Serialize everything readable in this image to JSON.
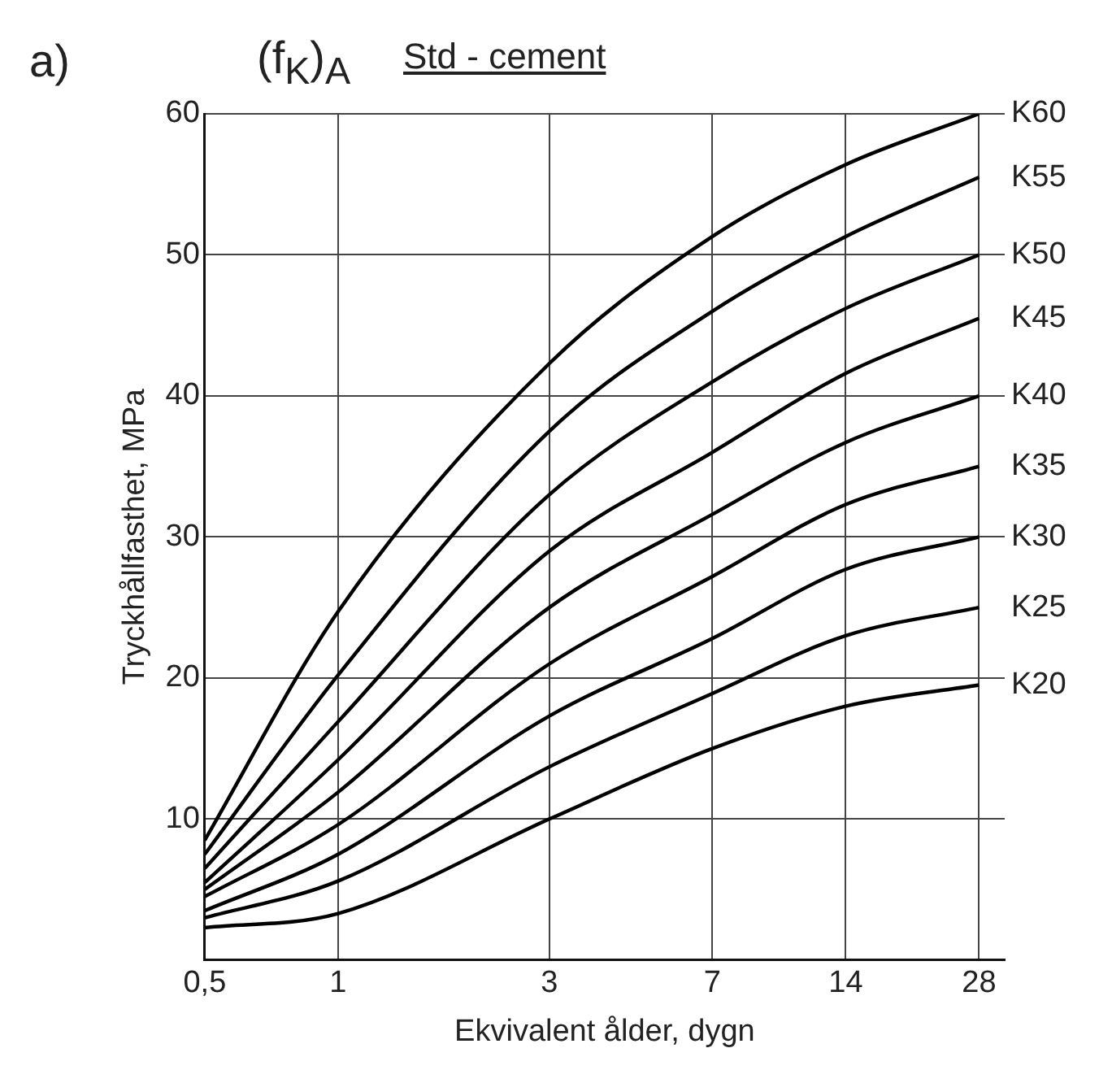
{
  "chart_data": {
    "type": "line",
    "title": "Std - cement",
    "xlabel": "Ekvivalent ålder, dygn",
    "ylabel": "Tryckhållfasthet, MPa",
    "annotations": [
      "a)",
      "(f$_{K}$)$_{A}$"
    ],
    "log": "x",
    "grid": true,
    "legend": false,
    "marker": "none",
    "line_style": "solid",
    "xlim": [
      0.5,
      32
    ],
    "xticks": [
      {
        "value": 0.5,
        "label": "0,5"
      },
      1,
      3,
      7,
      14,
      28
    ],
    "ylim": [
      0,
      60
    ],
    "yticks": [
      10,
      20,
      30,
      40,
      50,
      60
    ],
    "x": [
      0.5,
      1,
      3,
      7,
      14,
      28
    ],
    "series": [
      {
        "name": "K60",
        "color": "#000000",
        "values": [
          8.5,
          24.7,
          42.3,
          51.3,
          56.4,
          60
        ]
      },
      {
        "name": "K55",
        "color": "#000000",
        "values": [
          7.5,
          20.2,
          37.5,
          46,
          51.3,
          55.5
        ]
      },
      {
        "name": "K50",
        "color": "#000000",
        "values": [
          6.5,
          16.9,
          33,
          41,
          46.2,
          50
        ]
      },
      {
        "name": "K45",
        "color": "#000000",
        "values": [
          5.5,
          14.2,
          29,
          36,
          41.6,
          45.5
        ]
      },
      {
        "name": "K40",
        "color": "#000000",
        "values": [
          5,
          11.9,
          25,
          31.6,
          36.7,
          40
        ]
      },
      {
        "name": "K35",
        "color": "#000000",
        "values": [
          4.5,
          9.6,
          21,
          27.2,
          32.3,
          35
        ]
      },
      {
        "name": "K30",
        "color": "#000000",
        "values": [
          3.5,
          7.5,
          17.3,
          22.8,
          27.7,
          30
        ]
      },
      {
        "name": "K25",
        "color": "#000000",
        "values": [
          3,
          5.6,
          13.7,
          18.9,
          23,
          25
        ]
      },
      {
        "name": "K20",
        "color": "#000000",
        "values": [
          2.3,
          3.3,
          10,
          15,
          18,
          19.5
        ]
      }
    ]
  }
}
